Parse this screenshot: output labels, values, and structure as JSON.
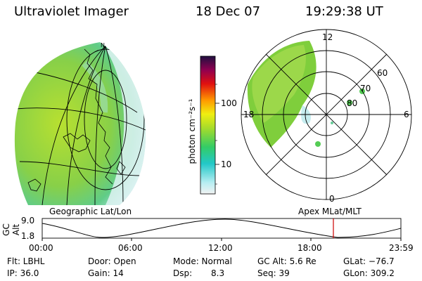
{
  "header": {
    "instrument": "Ultraviolet Imager",
    "date": "18 Dec 07",
    "time": "19:29:38 UT"
  },
  "colorbar": {
    "unit_label": "photon cm⁻²s⁻¹",
    "tick_100": "100",
    "tick_10": "10"
  },
  "polar_plot": {
    "mlt_top": "12",
    "mlt_left": "18",
    "mlt_right": "6",
    "mlt_bottom": "0",
    "lat_60": "60",
    "lat_70": "70",
    "lat_80": "80"
  },
  "captions": {
    "geographic": "Geographic Lat/Lon",
    "apex": "Apex MLat/MLT"
  },
  "timeline": {
    "y_axis_label": "GC Alt",
    "y_max": "9.0",
    "y_min": "1.8",
    "t0": "00:00",
    "t1": "06:00",
    "t2": "12:00",
    "t3": "18:00",
    "t4": "23:59",
    "marker_color": "#cc0000"
  },
  "info": {
    "flt": "Flt: LBHL",
    "door": "Door: Open",
    "mode": "Mode: Normal",
    "gcalt": "GC Alt: 5.6 Re",
    "glat": "GLat: −76.7",
    "ip": "IP: 36.0",
    "gain": "Gain: 14",
    "dsp_label": "Dsp:",
    "dsp_val": "8.3",
    "seq": "Seq: 39",
    "glon": "GLon: 309.2"
  }
}
